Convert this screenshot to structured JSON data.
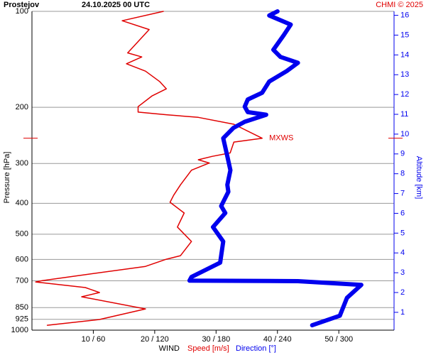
{
  "chart_data": {
    "type": "profile",
    "title": "Prostejov",
    "subtitle": "24.10.2025 00 UTC",
    "credit": "CHMI © 2025",
    "ylabel": "Pressure [hPa]",
    "y2label": "Altitude [km]",
    "xlabel": "WIND",
    "ylim": [
      1000,
      100
    ],
    "ylog": true,
    "yticks": [
      100,
      200,
      300,
      400,
      500,
      600,
      700,
      850,
      925,
      1000
    ],
    "y2lim": [
      0.1,
      16.2
    ],
    "y2ticks": [
      1,
      2,
      3,
      4,
      5,
      6,
      7,
      8,
      9,
      10,
      11,
      12,
      13,
      14,
      15,
      16
    ],
    "xlim": [
      0,
      59
    ],
    "x2lim": [
      0,
      354
    ],
    "xticks": [
      {
        "value": 10,
        "label": "10 / 60"
      },
      {
        "value": 20,
        "label": "20 / 120"
      },
      {
        "value": 30,
        "label": "30 / 180"
      },
      {
        "value": 40,
        "label": "40 / 240"
      },
      {
        "value": 50,
        "label": "50 / 300"
      }
    ],
    "grid": true,
    "annotation": {
      "label": "MXWS",
      "value": 250
    },
    "series": [
      {
        "name": "Speed [m/s]",
        "color": "#e00000",
        "axis": "x",
        "values": [
          21.4,
          14.7,
          19.1,
          15.6,
          17.9,
          15.4,
          18.5,
          20.8,
          21.9,
          19.6,
          17.3,
          17.3,
          21.9,
          27.1,
          32.9,
          37.5,
          32.9,
          32.3,
          29.4,
          27.1,
          28.9,
          26.0,
          24.2,
          23.1,
          22.5,
          24.8,
          23.7,
          26.0,
          24.2,
          21.9,
          18.5,
          1.7,
          0.6,
          8.7,
          11.0,
          8.1,
          18.5,
          11.0,
          2.5
        ],
        "pressure": [
          100,
          107,
          114,
          135,
          139,
          146,
          154,
          166,
          175,
          184,
          199,
          207,
          211,
          215,
          226,
          250,
          257,
          278,
          285,
          292,
          299,
          315,
          350,
          377,
          397,
          429,
          475,
          527,
          584,
          599,
          631,
          699,
          706,
          735,
          762,
          786,
          858,
          926,
          965
        ]
      },
      {
        "name": "Direction [°]",
        "color": "#0000ee",
        "axis": "x2",
        "values": [
          240,
          232,
          253,
          246,
          236,
          243,
          260,
          249,
          232,
          225,
          211,
          208,
          211,
          229,
          208,
          197,
          187,
          191,
          194,
          191,
          192,
          185,
          189,
          177,
          187,
          184,
          156,
          154,
          260,
          322,
          308,
          301,
          274
        ],
        "pressure": [
          100,
          103,
          110,
          119,
          132,
          139,
          145,
          154,
          166,
          180,
          189,
          199,
          207,
          211,
          222,
          232,
          250,
          285,
          315,
          350,
          368,
          408,
          429,
          475,
          527,
          614,
          681,
          699,
          702,
          721,
          792,
          901,
          965
        ]
      }
    ]
  }
}
